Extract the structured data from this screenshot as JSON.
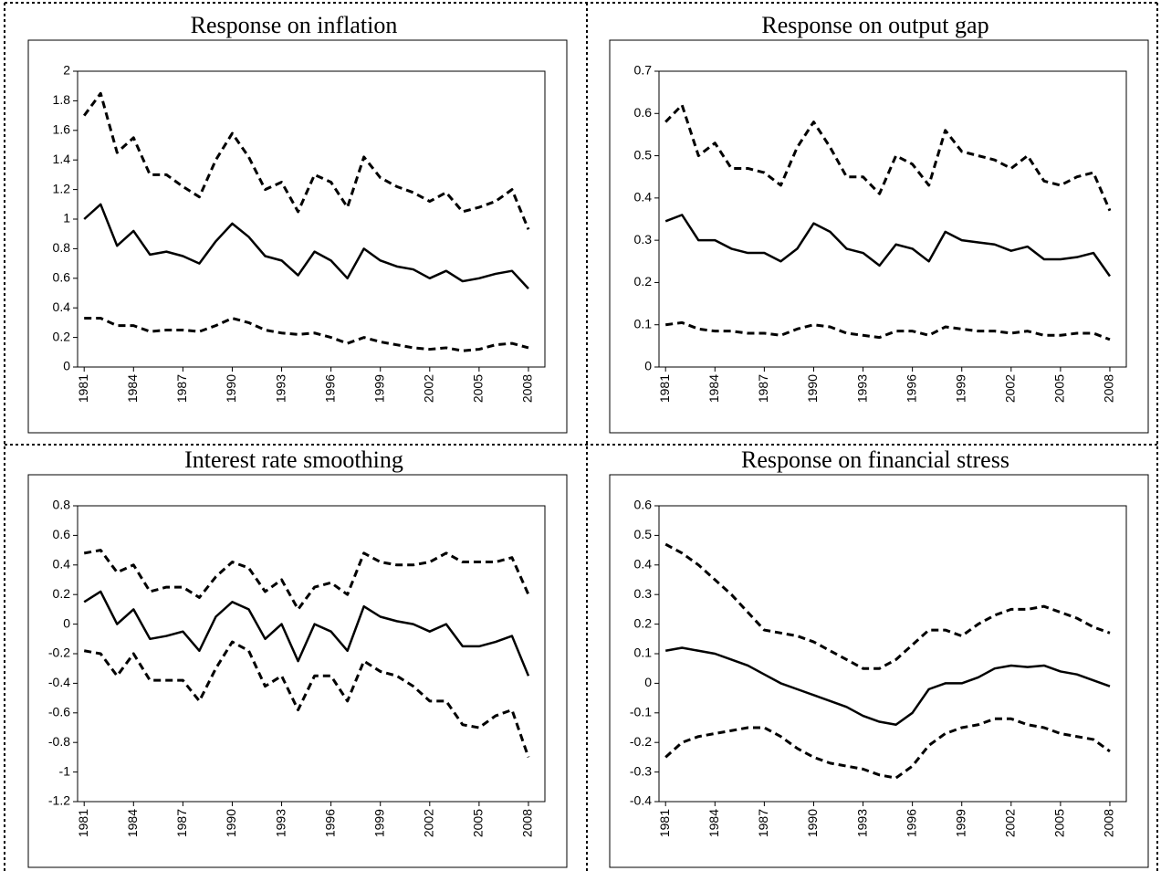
{
  "chart_data": [
    {
      "type": "line",
      "title": "Response on inflation",
      "x": [
        1981,
        1982,
        1983,
        1984,
        1985,
        1986,
        1987,
        1988,
        1989,
        1990,
        1991,
        1992,
        1993,
        1994,
        1995,
        1996,
        1997,
        1998,
        1999,
        2000,
        2001,
        2002,
        2003,
        2004,
        2005,
        2006,
        2007,
        2008
      ],
      "xlim": [
        1980.6,
        2009
      ],
      "xticks": [
        1981,
        1984,
        1987,
        1990,
        1993,
        1996,
        1999,
        2002,
        2005,
        2008
      ],
      "ylim": [
        0,
        2
      ],
      "yticks": [
        0,
        0.2,
        0.4,
        0.6,
        0.8,
        1,
        1.2,
        1.4,
        1.6,
        1.8,
        2
      ],
      "series": [
        {
          "color": "#000000",
          "dashed": true,
          "values": [
            1.7,
            1.85,
            1.45,
            1.55,
            1.3,
            1.3,
            1.22,
            1.15,
            1.4,
            1.58,
            1.42,
            1.2,
            1.25,
            1.05,
            1.3,
            1.25,
            1.08,
            1.42,
            1.28,
            1.22,
            1.18,
            1.12,
            1.18,
            1.05,
            1.08,
            1.12,
            1.2,
            0.93
          ]
        },
        {
          "color": "#000000",
          "dashed": false,
          "values": [
            1.0,
            1.1,
            0.82,
            0.92,
            0.76,
            0.78,
            0.75,
            0.7,
            0.85,
            0.97,
            0.88,
            0.75,
            0.72,
            0.62,
            0.78,
            0.72,
            0.6,
            0.8,
            0.72,
            0.68,
            0.66,
            0.6,
            0.65,
            0.58,
            0.6,
            0.63,
            0.65,
            0.53
          ]
        },
        {
          "color": "#000000",
          "dashed": true,
          "values": [
            0.33,
            0.33,
            0.28,
            0.28,
            0.24,
            0.25,
            0.25,
            0.24,
            0.28,
            0.33,
            0.3,
            0.25,
            0.23,
            0.22,
            0.23,
            0.2,
            0.16,
            0.2,
            0.17,
            0.15,
            0.13,
            0.12,
            0.13,
            0.11,
            0.12,
            0.15,
            0.16,
            0.13
          ]
        }
      ]
    },
    {
      "type": "line",
      "title": "Response on output gap",
      "x": [
        1981,
        1982,
        1983,
        1984,
        1985,
        1986,
        1987,
        1988,
        1989,
        1990,
        1991,
        1992,
        1993,
        1994,
        1995,
        1996,
        1997,
        1998,
        1999,
        2000,
        2001,
        2002,
        2003,
        2004,
        2005,
        2006,
        2007,
        2008
      ],
      "xlim": [
        1980.6,
        2009
      ],
      "xticks": [
        1981,
        1984,
        1987,
        1990,
        1993,
        1996,
        1999,
        2002,
        2005,
        2008
      ],
      "ylim": [
        0,
        0.7
      ],
      "yticks": [
        0,
        0.1,
        0.2,
        0.3,
        0.4,
        0.5,
        0.6,
        0.7
      ],
      "series": [
        {
          "color": "#000000",
          "dashed": true,
          "values": [
            0.58,
            0.62,
            0.5,
            0.53,
            0.47,
            0.47,
            0.46,
            0.43,
            0.52,
            0.58,
            0.52,
            0.45,
            0.45,
            0.41,
            0.5,
            0.48,
            0.43,
            0.56,
            0.51,
            0.5,
            0.49,
            0.47,
            0.5,
            0.44,
            0.43,
            0.45,
            0.46,
            0.37
          ]
        },
        {
          "color": "#000000",
          "dashed": false,
          "values": [
            0.345,
            0.36,
            0.3,
            0.3,
            0.28,
            0.27,
            0.27,
            0.25,
            0.28,
            0.34,
            0.32,
            0.28,
            0.27,
            0.24,
            0.29,
            0.28,
            0.25,
            0.32,
            0.3,
            0.295,
            0.29,
            0.275,
            0.285,
            0.255,
            0.255,
            0.26,
            0.27,
            0.215
          ]
        },
        {
          "color": "#000000",
          "dashed": true,
          "values": [
            0.1,
            0.105,
            0.09,
            0.085,
            0.085,
            0.08,
            0.08,
            0.075,
            0.09,
            0.1,
            0.095,
            0.08,
            0.075,
            0.07,
            0.085,
            0.085,
            0.075,
            0.095,
            0.09,
            0.085,
            0.085,
            0.08,
            0.085,
            0.075,
            0.075,
            0.08,
            0.08,
            0.065
          ]
        }
      ]
    },
    {
      "type": "line",
      "title": "Interest rate smoothing",
      "x": [
        1981,
        1982,
        1983,
        1984,
        1985,
        1986,
        1987,
        1988,
        1989,
        1990,
        1991,
        1992,
        1993,
        1994,
        1995,
        1996,
        1997,
        1998,
        1999,
        2000,
        2001,
        2002,
        2003,
        2004,
        2005,
        2006,
        2007,
        2008
      ],
      "xlim": [
        1980.6,
        2009
      ],
      "xticks": [
        1981,
        1984,
        1987,
        1990,
        1993,
        1996,
        1999,
        2002,
        2005,
        2008
      ],
      "ylim": [
        -1.2,
        0.8
      ],
      "yticks": [
        -1.2,
        -1,
        -0.8,
        -0.6,
        -0.4,
        -0.2,
        0,
        0.2,
        0.4,
        0.6,
        0.8
      ],
      "series": [
        {
          "color": "#000000",
          "dashed": true,
          "values": [
            0.48,
            0.5,
            0.35,
            0.4,
            0.22,
            0.25,
            0.25,
            0.18,
            0.32,
            0.42,
            0.38,
            0.22,
            0.3,
            0.1,
            0.25,
            0.28,
            0.2,
            0.48,
            0.42,
            0.4,
            0.4,
            0.42,
            0.48,
            0.42,
            0.42,
            0.42,
            0.45,
            0.2
          ]
        },
        {
          "color": "#000000",
          "dashed": false,
          "values": [
            0.15,
            0.22,
            0.0,
            0.1,
            -0.1,
            -0.08,
            -0.05,
            -0.18,
            0.05,
            0.15,
            0.1,
            -0.1,
            0.0,
            -0.25,
            0.0,
            -0.05,
            -0.18,
            0.12,
            0.05,
            0.02,
            0.0,
            -0.05,
            0.0,
            -0.15,
            -0.15,
            -0.12,
            -0.08,
            -0.35
          ]
        },
        {
          "color": "#000000",
          "dashed": true,
          "values": [
            -0.18,
            -0.2,
            -0.35,
            -0.2,
            -0.38,
            -0.38,
            -0.38,
            -0.52,
            -0.3,
            -0.12,
            -0.18,
            -0.42,
            -0.35,
            -0.58,
            -0.35,
            -0.35,
            -0.52,
            -0.25,
            -0.32,
            -0.35,
            -0.42,
            -0.52,
            -0.52,
            -0.68,
            -0.7,
            -0.62,
            -0.58,
            -0.9
          ]
        }
      ]
    },
    {
      "type": "line",
      "title": "Response on financial stress",
      "x": [
        1981,
        1982,
        1983,
        1984,
        1985,
        1986,
        1987,
        1988,
        1989,
        1990,
        1991,
        1992,
        1993,
        1994,
        1995,
        1996,
        1997,
        1998,
        1999,
        2000,
        2001,
        2002,
        2003,
        2004,
        2005,
        2006,
        2007,
        2008
      ],
      "xlim": [
        1980.6,
        2009
      ],
      "xticks": [
        1981,
        1984,
        1987,
        1990,
        1993,
        1996,
        1999,
        2002,
        2005,
        2008
      ],
      "ylim": [
        -0.4,
        0.6
      ],
      "yticks": [
        -0.4,
        -0.3,
        -0.2,
        -0.1,
        0,
        0.1,
        0.2,
        0.3,
        0.4,
        0.5,
        0.6
      ],
      "series": [
        {
          "color": "#000000",
          "dashed": true,
          "values": [
            0.47,
            0.44,
            0.4,
            0.35,
            0.3,
            0.24,
            0.18,
            0.17,
            0.16,
            0.14,
            0.11,
            0.08,
            0.05,
            0.05,
            0.08,
            0.13,
            0.18,
            0.18,
            0.16,
            0.2,
            0.23,
            0.25,
            0.25,
            0.26,
            0.24,
            0.22,
            0.19,
            0.17
          ]
        },
        {
          "color": "#000000",
          "dashed": false,
          "values": [
            0.11,
            0.12,
            0.11,
            0.1,
            0.08,
            0.06,
            0.03,
            0.0,
            -0.02,
            -0.04,
            -0.06,
            -0.08,
            -0.11,
            -0.13,
            -0.14,
            -0.1,
            -0.02,
            0.0,
            0.0,
            0.02,
            0.05,
            0.06,
            0.055,
            0.06,
            0.04,
            0.03,
            0.01,
            -0.01
          ]
        },
        {
          "color": "#000000",
          "dashed": true,
          "values": [
            -0.25,
            -0.2,
            -0.18,
            -0.17,
            -0.16,
            -0.15,
            -0.15,
            -0.18,
            -0.22,
            -0.25,
            -0.27,
            -0.28,
            -0.29,
            -0.31,
            -0.32,
            -0.28,
            -0.21,
            -0.17,
            -0.15,
            -0.14,
            -0.12,
            -0.12,
            -0.14,
            -0.15,
            -0.17,
            -0.18,
            -0.19,
            -0.23
          ]
        }
      ]
    }
  ]
}
